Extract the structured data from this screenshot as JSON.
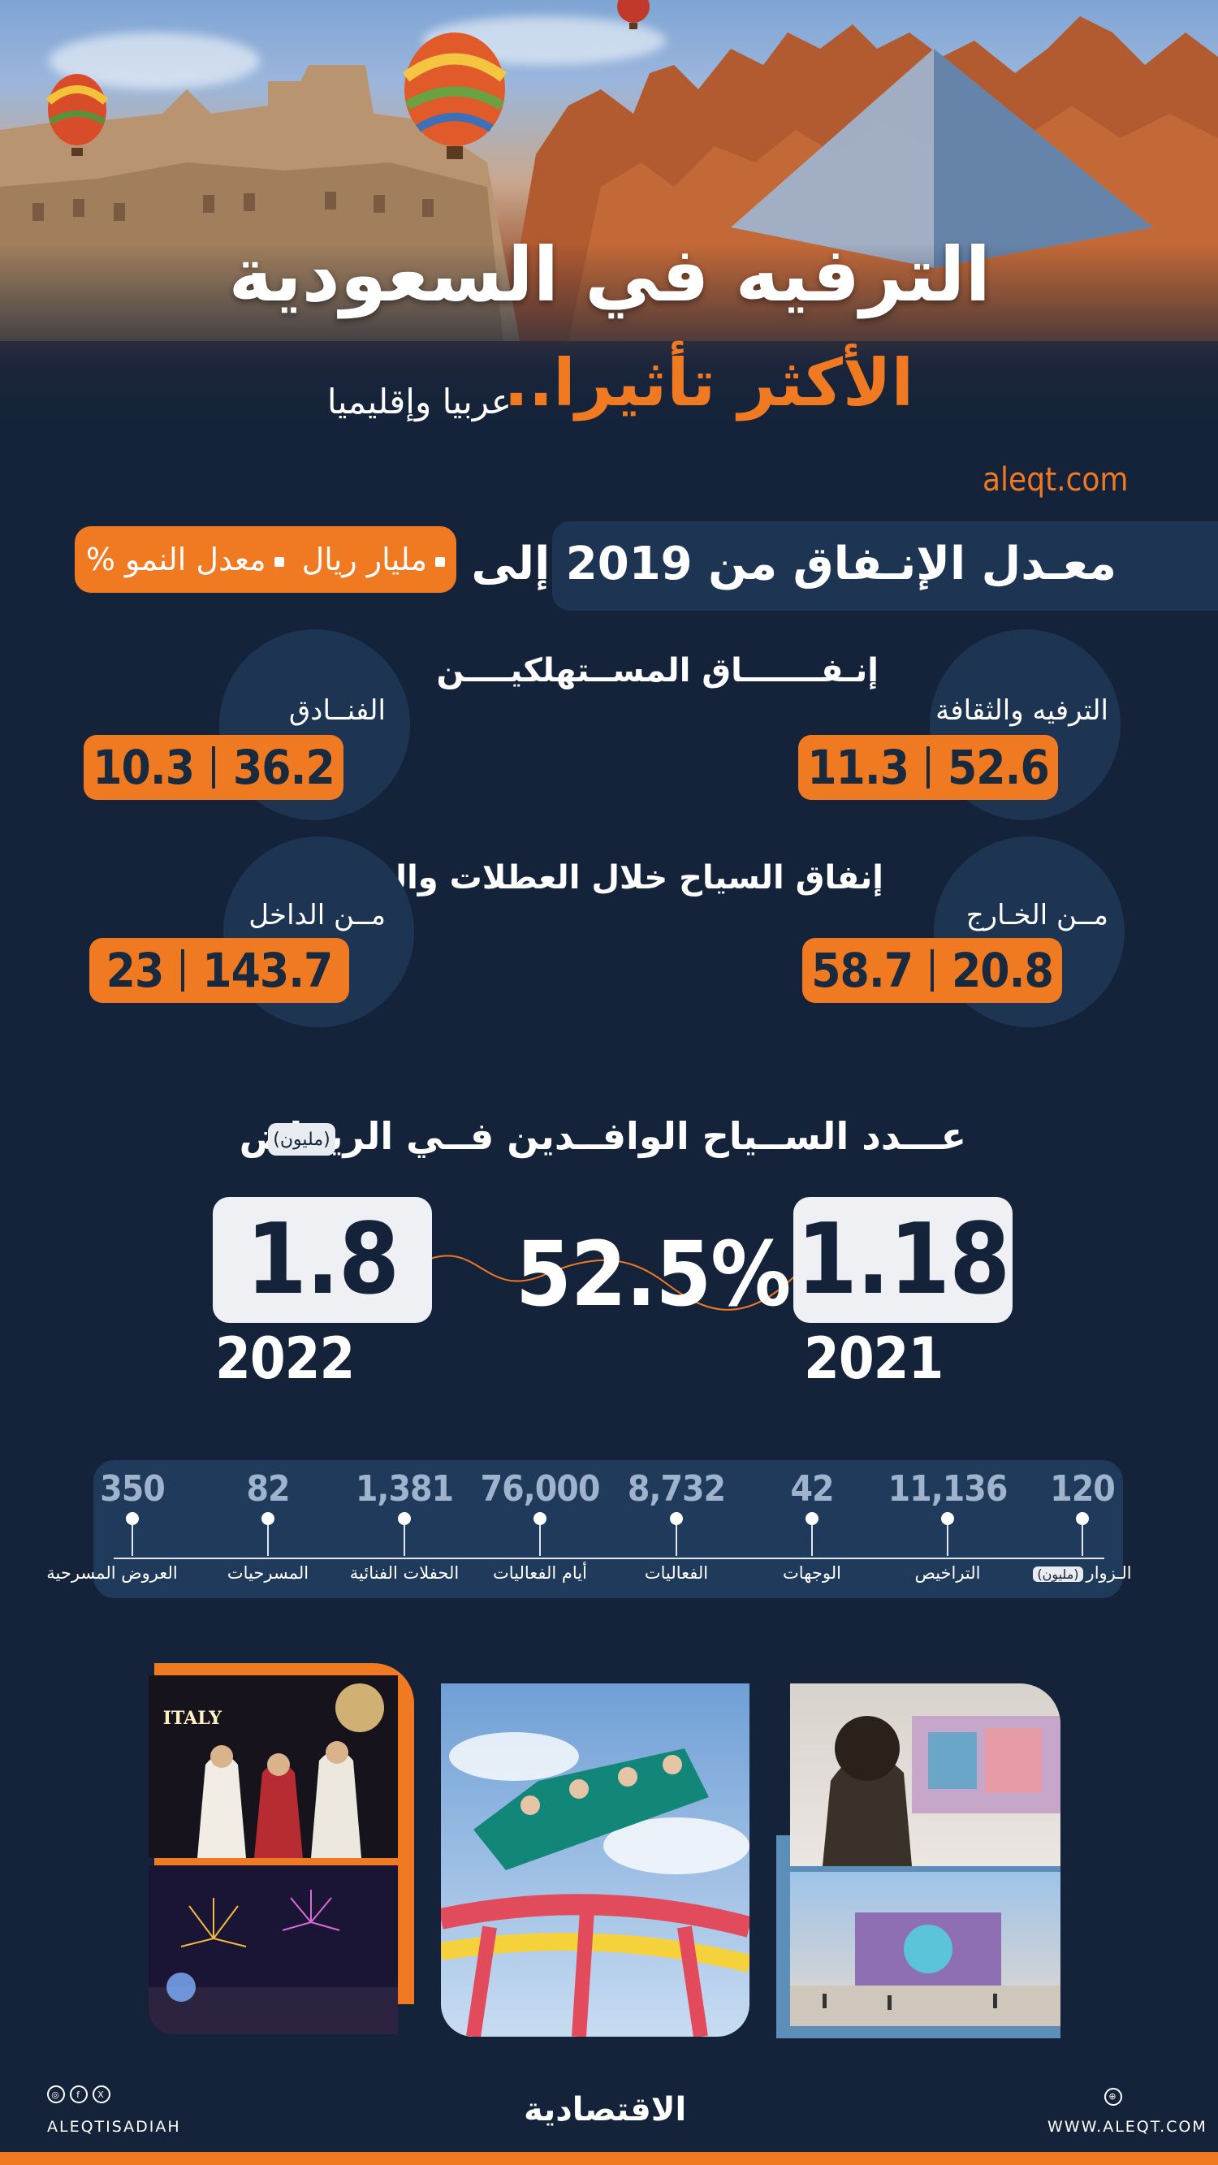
{
  "header": {
    "title_line1": "الترفيه في السعودية",
    "title_line2": "الأكثر تأثيرا..",
    "title_line3": "عربيا وإقليميا",
    "site": "aleqt.com"
  },
  "spending": {
    "title": "معـدل الإنـفاق من 2019 إلى 2022",
    "legend": {
      "billion_riyal": "مليار ريال",
      "growth_rate": "معدل النمو %"
    }
  },
  "consumer": {
    "heading": "إنـفـــــــاق المســتهلكيــــن",
    "entertainment": {
      "label": "الترفيه والثقافة",
      "growth": "11.3",
      "billion": "52.6"
    },
    "hotels": {
      "label": "الفنــادق",
      "growth": "10.3",
      "billion": "36.2"
    }
  },
  "tourists": {
    "heading": "إنفاق السياح خلال العطلات والتسوق",
    "abroad": {
      "label": "مــن الخـارج",
      "growth": "58.7",
      "billion": "20.8"
    },
    "domestic": {
      "label": "مــن الداخل",
      "growth": "23",
      "billion": "143.7"
    }
  },
  "riyadh_visitors": {
    "heading": "عـــدد الســياح الوافــدين فــي الريــاض",
    "unit": "(مليون)",
    "year_2021_value": "1.18",
    "year_2021_label": "2021",
    "year_2022_value": "1.8",
    "year_2022_label": "2022",
    "growth": "52.5%"
  },
  "timeline": [
    {
      "value": "120",
      "label": "الـزوار",
      "unit": "(مليون)"
    },
    {
      "value": "11,136",
      "label": "التراخيص"
    },
    {
      "value": "42",
      "label": "الوجهات"
    },
    {
      "value": "8,732",
      "label": "الفعاليات"
    },
    {
      "value": "76,000",
      "label": "أيام الفعاليات"
    },
    {
      "value": "1,381",
      "label": "الحفلات الفنائية"
    },
    {
      "value": "82",
      "label": "المسرحيات"
    },
    {
      "value": "350",
      "label": "العروض المسرحية"
    }
  ],
  "photos": {
    "sign_text": "ITALY"
  },
  "footer": {
    "brand": "الاقتصادية",
    "handle": "ALEQTISADIAH",
    "website": "WWW.ALEQT.COM"
  },
  "colors": {
    "navy": "#14233a",
    "panel": "#1d3553",
    "orange": "#f07a22",
    "light": "#eef0f4"
  }
}
